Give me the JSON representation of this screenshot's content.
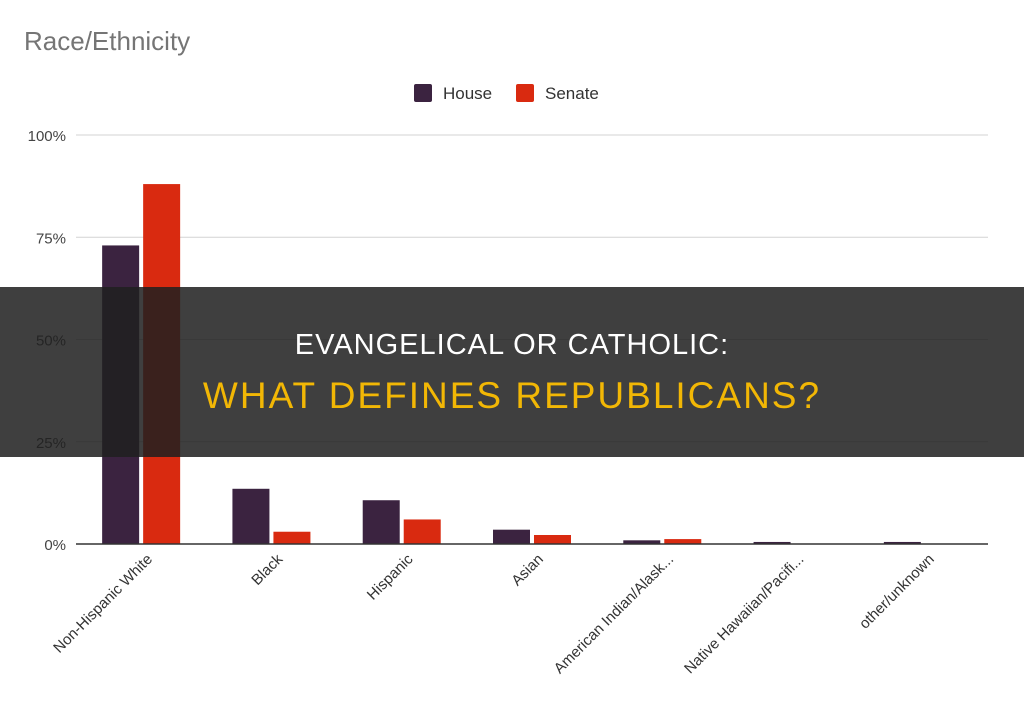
{
  "chart_data": {
    "type": "bar",
    "title": "Race/Ethnicity",
    "categories": [
      "Non-Hispanic White",
      "Black",
      "Hispanic",
      "Asian",
      "American Indian/Alask...",
      "Native Hawaiian/Pacifi...",
      "other/unknown"
    ],
    "series": [
      {
        "name": "House",
        "color": "#3b2340",
        "values": [
          73,
          13.5,
          10.7,
          3.5,
          0.9,
          0.5,
          0.5
        ]
      },
      {
        "name": "Senate",
        "color": "#d92a10",
        "values": [
          88,
          3,
          6,
          2.2,
          1.2,
          0,
          0
        ]
      }
    ],
    "ylim": [
      0,
      100
    ],
    "yticks": [
      "0%",
      "25%",
      "50%",
      "75%",
      "100%"
    ],
    "ytick_values": [
      0,
      25,
      50,
      75,
      100
    ],
    "xlabel": "",
    "ylabel": "",
    "legend_position": "top",
    "grid": true
  },
  "banner": {
    "line1": "Evangelical or Catholic:",
    "line2": "What Defines Republicans?"
  }
}
